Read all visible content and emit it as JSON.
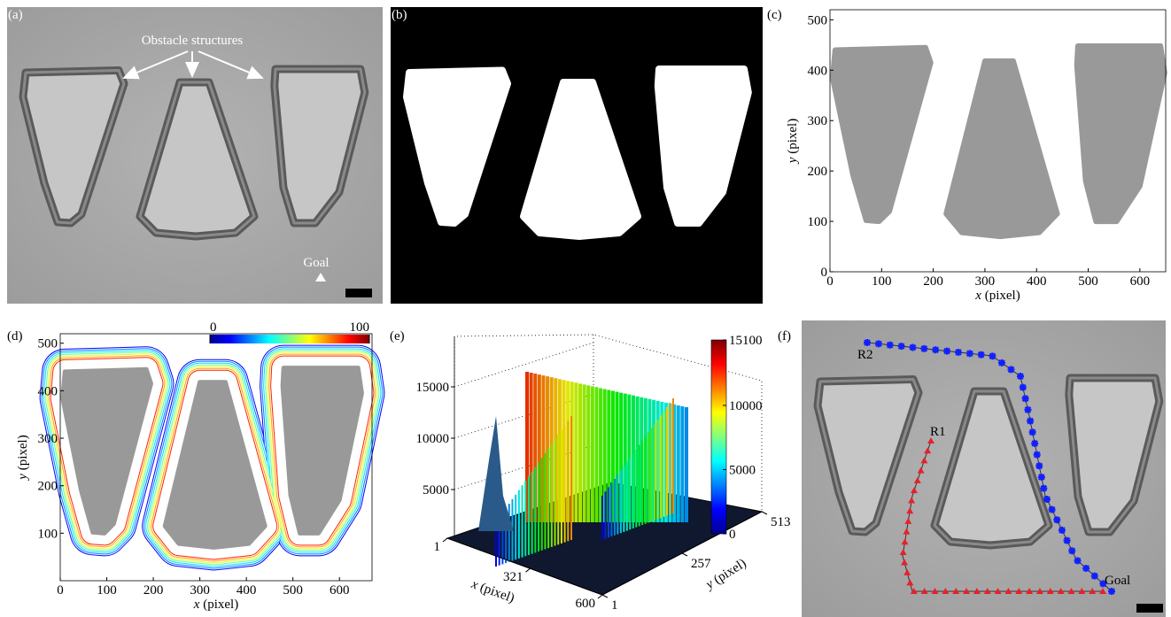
{
  "panels": {
    "a": {
      "label": "(a)",
      "annotation": "Obstacle structures",
      "goal": "Goal"
    },
    "b": {
      "label": "(b)"
    },
    "c": {
      "label": "(c)",
      "x_label": {
        "var": "x",
        "unit": "(pixel)"
      },
      "y_label": {
        "var": "y",
        "unit": "(pixel)"
      },
      "xlim": [
        0,
        650
      ],
      "ylim": [
        0,
        520
      ],
      "xticks": [
        0,
        100,
        200,
        300,
        400,
        500,
        600
      ],
      "yticks": [
        0,
        100,
        200,
        300,
        400,
        500
      ]
    },
    "d": {
      "label": "(d)",
      "x_label": {
        "var": "x",
        "unit": "(pixel)"
      },
      "y_label": {
        "var": "y",
        "unit": "(pixel)"
      },
      "xlim": [
        0,
        670
      ],
      "ylim": [
        0,
        520
      ],
      "xticks": [
        0,
        100,
        200,
        300,
        400,
        500,
        600
      ],
      "yticks": [
        100,
        200,
        300,
        400,
        500
      ],
      "colorbar_ticks": [
        0,
        100
      ]
    },
    "e": {
      "label": "(e)",
      "x_label": {
        "var": "x",
        "unit": "(pixel)"
      },
      "y_label": {
        "var": "y",
        "unit": "(pixel)"
      },
      "xticks": [
        1,
        321,
        600
      ],
      "yticks": [
        1,
        257,
        513
      ],
      "zticks": [
        5000,
        10000,
        15000
      ],
      "colorbar_ticks": [
        0,
        5000,
        10000,
        15100
      ]
    },
    "f": {
      "label": "(f)",
      "routes": [
        "R1",
        "R2"
      ],
      "goal": "Goal"
    }
  }
}
